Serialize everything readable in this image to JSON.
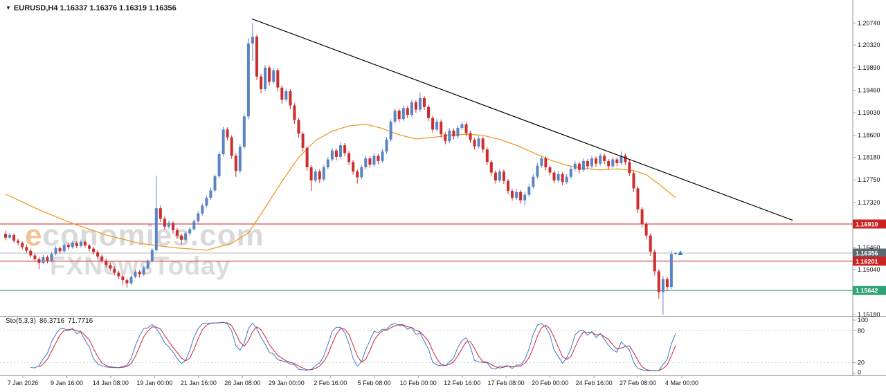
{
  "header": {
    "dropdown_icon": "▼",
    "text": "EURUSD,H4 1.16337 1.16376 1.16319 1.16356"
  },
  "watermark": {
    "line1": "economies.com",
    "line2": "FXNewsToday"
  },
  "colors": {
    "background": "#ffffff",
    "bull": "#5b84c4",
    "bear": "#cc2e2e",
    "ma": "#ef9b28",
    "trendline": "#000000",
    "resistance": "#cc2222",
    "support": "#2fa374",
    "current_price_line": "#b3b9bd",
    "axis_text": "#111111",
    "separator": "#9a9a9a",
    "sto_main": "#3c78c8",
    "sto_signal": "#cc2233",
    "sto_levels": "#cfcfcf",
    "tag_text": "#ffffff"
  },
  "price_axis": {
    "labels": [
      "1.20740",
      "1.20320",
      "1.19890",
      "1.19460",
      "1.19030",
      "1.18600",
      "1.18180",
      "1.17750",
      "1.17320",
      "1.16460",
      "1.16040",
      "1.15180"
    ],
    "tags": [
      {
        "text": "1.16910",
        "value": 1.1691,
        "bg": "#cc2222"
      },
      {
        "text": "1.16356",
        "value": 1.16356,
        "bg": "#5a686f"
      },
      {
        "text": "1.16201",
        "value": 1.16201,
        "bg": "#cc2222"
      },
      {
        "text": "1.15642",
        "value": 1.15642,
        "bg": "#2fa374"
      }
    ]
  },
  "levels": [
    {
      "value": 1.1691,
      "color": "#cc2222",
      "width": 1
    },
    {
      "value": 1.16356,
      "color": "#b3b9bd",
      "width": 1
    },
    {
      "value": 1.16201,
      "color": "#cc2222",
      "width": 1
    },
    {
      "value": 1.15642,
      "color": "#2fa374",
      "width": 1.2
    }
  ],
  "trendline": {
    "from_bar": 58.8,
    "from_price": 1.2082,
    "to_bar": 188,
    "to_price": 1.1698
  },
  "sto_panel": {
    "label": "Sto(5,3,3)",
    "value_main": "86.3716",
    "value_signal": "71.7716",
    "upper_level": 80,
    "lower_level": 20,
    "range": [
      0,
      100
    ],
    "axis_labels": [
      {
        "text": "100",
        "value": 100
      },
      {
        "text": "80",
        "value": 80
      },
      {
        "text": "20",
        "value": 20
      },
      {
        "text": "0",
        "value": 0
      }
    ]
  },
  "chart_data": {
    "type": "candlestick",
    "title": "EURUSD H4",
    "symbol": "EURUSD",
    "timeframe": "H4",
    "y_range": [
      1.1517,
      1.211
    ],
    "grid": false,
    "legend_position": "none",
    "x_axis_dates": [
      "7 Jan 2026",
      "9 Jan 16:00",
      "14 Jan 08:00",
      "19 Jan 00:00",
      "21 Jan 16:00",
      "26 Jan 08:00",
      "29 Jan 00:00",
      "2 Feb 16:00",
      "5 Feb 08:00",
      "10 Feb 00:00",
      "12 Feb 16:00",
      "17 Feb 08:00",
      "20 Feb 00:00",
      "24 Feb 16:00",
      "27 Feb 08:00",
      "4 Mar 00:00"
    ],
    "key_levels": [
      1.1691,
      1.16201,
      1.15642
    ],
    "current_price": 1.16356,
    "indicator": {
      "name": "Stochastic",
      "params": "5,3,3",
      "last_values": [
        86.3716,
        71.7716
      ]
    },
    "ohlc": [
      [
        1.1672,
        1.1678,
        1.166,
        1.1665
      ],
      [
        1.1665,
        1.1674,
        1.1662,
        1.167
      ],
      [
        1.167,
        1.1673,
        1.1655,
        1.1659
      ],
      [
        1.1659,
        1.1663,
        1.165,
        1.1655
      ],
      [
        1.1655,
        1.1658,
        1.1642,
        1.1647
      ],
      [
        1.1647,
        1.1652,
        1.1636,
        1.164
      ],
      [
        1.164,
        1.1644,
        1.1627,
        1.1631
      ],
      [
        1.1631,
        1.1636,
        1.1619,
        1.1624
      ],
      [
        1.1624,
        1.1628,
        1.1605,
        1.1617
      ],
      [
        1.1617,
        1.1632,
        1.1614,
        1.1628
      ],
      [
        1.1628,
        1.1631,
        1.1616,
        1.1621
      ],
      [
        1.1621,
        1.1638,
        1.1618,
        1.1634
      ],
      [
        1.1634,
        1.1649,
        1.1631,
        1.1645
      ],
      [
        1.1645,
        1.1648,
        1.1634,
        1.1639
      ],
      [
        1.1639,
        1.1655,
        1.1636,
        1.1651
      ],
      [
        1.1651,
        1.1655,
        1.1642,
        1.1647
      ],
      [
        1.1647,
        1.1659,
        1.1644,
        1.1655
      ],
      [
        1.1655,
        1.1658,
        1.1645,
        1.1649
      ],
      [
        1.1649,
        1.1661,
        1.1646,
        1.1657
      ],
      [
        1.1657,
        1.166,
        1.1646,
        1.165
      ],
      [
        1.165,
        1.1653,
        1.1639,
        1.1644
      ],
      [
        1.1644,
        1.1648,
        1.1632,
        1.1637
      ],
      [
        1.1637,
        1.1641,
        1.1624,
        1.1629
      ],
      [
        1.1629,
        1.1633,
        1.1616,
        1.1621
      ],
      [
        1.1621,
        1.1625,
        1.1608,
        1.1613
      ],
      [
        1.1613,
        1.1617,
        1.1601,
        1.1606
      ],
      [
        1.1606,
        1.161,
        1.1593,
        1.1598
      ],
      [
        1.1598,
        1.1602,
        1.1586,
        1.1591
      ],
      [
        1.1591,
        1.1595,
        1.1575,
        1.1584
      ],
      [
        1.1584,
        1.1588,
        1.157,
        1.1578
      ],
      [
        1.1578,
        1.1594,
        1.1575,
        1.159
      ],
      [
        1.159,
        1.1604,
        1.1587,
        1.16
      ],
      [
        1.16,
        1.1603,
        1.1589,
        1.1595
      ],
      [
        1.1595,
        1.1611,
        1.1592,
        1.1607
      ],
      [
        1.1607,
        1.1624,
        1.1604,
        1.162
      ],
      [
        1.162,
        1.1645,
        1.1617,
        1.1641
      ],
      [
        1.1641,
        1.1783,
        1.1638,
        1.1721
      ],
      [
        1.1721,
        1.1726,
        1.1695,
        1.1701
      ],
      [
        1.1701,
        1.1705,
        1.168,
        1.1686
      ],
      [
        1.1686,
        1.1697,
        1.1682,
        1.1693
      ],
      [
        1.1693,
        1.1696,
        1.1673,
        1.1679
      ],
      [
        1.1679,
        1.1683,
        1.1663,
        1.1669
      ],
      [
        1.1669,
        1.1673,
        1.1652,
        1.1661
      ],
      [
        1.1661,
        1.1677,
        1.1658,
        1.1673
      ],
      [
        1.1673,
        1.1685,
        1.1669,
        1.1681
      ],
      [
        1.1681,
        1.17,
        1.1678,
        1.1696
      ],
      [
        1.1696,
        1.1715,
        1.1693,
        1.1711
      ],
      [
        1.1711,
        1.173,
        1.1707,
        1.1726
      ],
      [
        1.1726,
        1.1745,
        1.1722,
        1.1741
      ],
      [
        1.1741,
        1.176,
        1.1737,
        1.1755
      ],
      [
        1.1755,
        1.1786,
        1.1751,
        1.1782
      ],
      [
        1.1782,
        1.1829,
        1.1778,
        1.1824
      ],
      [
        1.1824,
        1.1876,
        1.182,
        1.1871
      ],
      [
        1.1871,
        1.1875,
        1.185,
        1.1856
      ],
      [
        1.1856,
        1.186,
        1.1815,
        1.1821
      ],
      [
        1.1821,
        1.1826,
        1.1781,
        1.1792
      ],
      [
        1.1792,
        1.1843,
        1.1788,
        1.1838
      ],
      [
        1.1838,
        1.1901,
        1.1834,
        1.1896
      ],
      [
        1.1896,
        1.2045,
        1.189,
        1.2035
      ],
      [
        1.2035,
        1.2074,
        1.2002,
        1.2048
      ],
      [
        1.2048,
        1.2052,
        1.1965,
        1.1972
      ],
      [
        1.1972,
        1.1977,
        1.194,
        1.1948
      ],
      [
        1.1948,
        1.1994,
        1.1944,
        1.1989
      ],
      [
        1.1989,
        1.1993,
        1.1955,
        1.1962
      ],
      [
        1.1962,
        1.1989,
        1.1958,
        1.1984
      ],
      [
        1.1984,
        1.1988,
        1.1944,
        1.1951
      ],
      [
        1.1951,
        1.1955,
        1.192,
        1.1928
      ],
      [
        1.1928,
        1.1949,
        1.1924,
        1.1944
      ],
      [
        1.1944,
        1.1948,
        1.191,
        1.1917
      ],
      [
        1.1917,
        1.1921,
        1.1882,
        1.1889
      ],
      [
        1.1889,
        1.1893,
        1.1856,
        1.1863
      ],
      [
        1.1863,
        1.1867,
        1.1829,
        1.1836
      ],
      [
        1.1836,
        1.184,
        1.1792,
        1.1799
      ],
      [
        1.1799,
        1.1803,
        1.1754,
        1.1774
      ],
      [
        1.1774,
        1.1796,
        1.177,
        1.1791
      ],
      [
        1.1791,
        1.1795,
        1.1769,
        1.1776
      ],
      [
        1.1776,
        1.1804,
        1.1772,
        1.1799
      ],
      [
        1.1799,
        1.1819,
        1.1795,
        1.1814
      ],
      [
        1.1814,
        1.1836,
        1.181,
        1.1831
      ],
      [
        1.1831,
        1.1835,
        1.1812,
        1.1819
      ],
      [
        1.1819,
        1.1846,
        1.1815,
        1.1841
      ],
      [
        1.1841,
        1.1845,
        1.182,
        1.1826
      ],
      [
        1.1826,
        1.183,
        1.1803,
        1.1809
      ],
      [
        1.1809,
        1.1813,
        1.1785,
        1.1791
      ],
      [
        1.1791,
        1.1795,
        1.1768,
        1.178
      ],
      [
        1.178,
        1.1804,
        1.1776,
        1.1799
      ],
      [
        1.1799,
        1.1821,
        1.1795,
        1.1816
      ],
      [
        1.1816,
        1.182,
        1.1798,
        1.1804
      ],
      [
        1.1804,
        1.1826,
        1.18,
        1.1821
      ],
      [
        1.1821,
        1.1825,
        1.1805,
        1.1811
      ],
      [
        1.1811,
        1.1834,
        1.1807,
        1.1829
      ],
      [
        1.1829,
        1.1857,
        1.1825,
        1.1852
      ],
      [
        1.1852,
        1.1891,
        1.1848,
        1.1886
      ],
      [
        1.1886,
        1.1912,
        1.1882,
        1.1907
      ],
      [
        1.1907,
        1.1911,
        1.1885,
        1.1891
      ],
      [
        1.1891,
        1.1917,
        1.1887,
        1.1912
      ],
      [
        1.1912,
        1.1916,
        1.1893,
        1.1899
      ],
      [
        1.1899,
        1.1928,
        1.1895,
        1.1923
      ],
      [
        1.1923,
        1.1927,
        1.1903,
        1.1909
      ],
      [
        1.1909,
        1.1941,
        1.1905,
        1.1931
      ],
      [
        1.1931,
        1.1935,
        1.1908,
        1.1914
      ],
      [
        1.1914,
        1.1918,
        1.1887,
        1.1893
      ],
      [
        1.1893,
        1.1897,
        1.1865,
        1.1871
      ],
      [
        1.1871,
        1.1891,
        1.1867,
        1.1886
      ],
      [
        1.1886,
        1.189,
        1.1856,
        1.1862
      ],
      [
        1.1862,
        1.1866,
        1.1843,
        1.1849
      ],
      [
        1.1849,
        1.1874,
        1.1845,
        1.1869
      ],
      [
        1.1869,
        1.1873,
        1.1852,
        1.1858
      ],
      [
        1.1858,
        1.1879,
        1.1854,
        1.1874
      ],
      [
        1.1874,
        1.1886,
        1.187,
        1.1881
      ],
      [
        1.1881,
        1.1885,
        1.1858,
        1.1864
      ],
      [
        1.1864,
        1.1868,
        1.1845,
        1.1851
      ],
      [
        1.1851,
        1.1855,
        1.1833,
        1.1839
      ],
      [
        1.1839,
        1.1859,
        1.1835,
        1.1854
      ],
      [
        1.1854,
        1.1858,
        1.1827,
        1.1833
      ],
      [
        1.1833,
        1.1837,
        1.1803,
        1.1809
      ],
      [
        1.1809,
        1.1813,
        1.1783,
        1.1789
      ],
      [
        1.1789,
        1.1793,
        1.1768,
        1.1774
      ],
      [
        1.1774,
        1.1796,
        1.177,
        1.1791
      ],
      [
        1.1791,
        1.1795,
        1.1767,
        1.1773
      ],
      [
        1.1773,
        1.1777,
        1.1748,
        1.1754
      ],
      [
        1.1754,
        1.1758,
        1.1735,
        1.1741
      ],
      [
        1.1741,
        1.1757,
        1.1737,
        1.1752
      ],
      [
        1.1752,
        1.1756,
        1.173,
        1.1736
      ],
      [
        1.1736,
        1.1752,
        1.1727,
        1.1747
      ],
      [
        1.1747,
        1.1767,
        1.1743,
        1.1762
      ],
      [
        1.1762,
        1.1786,
        1.1758,
        1.1781
      ],
      [
        1.1781,
        1.1807,
        1.1777,
        1.1802
      ],
      [
        1.1802,
        1.1821,
        1.1798,
        1.1816
      ],
      [
        1.1816,
        1.182,
        1.1793,
        1.1799
      ],
      [
        1.1799,
        1.1803,
        1.1783,
        1.1789
      ],
      [
        1.1789,
        1.1793,
        1.1768,
        1.1774
      ],
      [
        1.1774,
        1.1791,
        1.177,
        1.1786
      ],
      [
        1.1786,
        1.179,
        1.1765,
        1.1771
      ],
      [
        1.1771,
        1.1786,
        1.1767,
        1.1781
      ],
      [
        1.1781,
        1.1801,
        1.1777,
        1.1796
      ],
      [
        1.1796,
        1.1811,
        1.1792,
        1.1806
      ],
      [
        1.1806,
        1.181,
        1.1788,
        1.1794
      ],
      [
        1.1794,
        1.1816,
        1.179,
        1.1811
      ],
      [
        1.1811,
        1.1815,
        1.1795,
        1.1801
      ],
      [
        1.1801,
        1.1821,
        1.1797,
        1.1816
      ],
      [
        1.1816,
        1.182,
        1.18,
        1.1806
      ],
      [
        1.1806,
        1.1826,
        1.1802,
        1.1821
      ],
      [
        1.1821,
        1.1825,
        1.1805,
        1.1811
      ],
      [
        1.1811,
        1.1815,
        1.1795,
        1.1801
      ],
      [
        1.1801,
        1.1819,
        1.1797,
        1.1814
      ],
      [
        1.1814,
        1.1818,
        1.1801,
        1.1807
      ],
      [
        1.1807,
        1.1829,
        1.1803,
        1.1821
      ],
      [
        1.1821,
        1.1825,
        1.1803,
        1.1809
      ],
      [
        1.1809,
        1.1813,
        1.1782,
        1.1788
      ],
      [
        1.1788,
        1.1792,
        1.1752,
        1.1759
      ],
      [
        1.1759,
        1.1763,
        1.1712,
        1.1719
      ],
      [
        1.1719,
        1.1723,
        1.1684,
        1.1691
      ],
      [
        1.1691,
        1.1695,
        1.1662,
        1.1669
      ],
      [
        1.1669,
        1.1673,
        1.163,
        1.1638
      ],
      [
        1.1638,
        1.1642,
        1.1593,
        1.1601
      ],
      [
        1.1601,
        1.1605,
        1.1549,
        1.1561
      ],
      [
        1.1561,
        1.1592,
        1.1518,
        1.1586
      ],
      [
        1.1586,
        1.159,
        1.1563,
        1.1571
      ],
      [
        1.1571,
        1.1639,
        1.1567,
        1.16337
      ],
      [
        1.16337,
        1.16376,
        1.16319,
        1.16356
      ]
    ],
    "ma_points": [
      [
        0,
        1.1748
      ],
      [
        8,
        1.1718
      ],
      [
        16,
        1.1692
      ],
      [
        24,
        1.167
      ],
      [
        32,
        1.1654
      ],
      [
        40,
        1.1646
      ],
      [
        48,
        1.1641
      ],
      [
        54,
        1.1654
      ],
      [
        58,
        1.1674
      ],
      [
        62,
        1.1722
      ],
      [
        66,
        1.1772
      ],
      [
        70,
        1.1818
      ],
      [
        74,
        1.185
      ],
      [
        78,
        1.1868
      ],
      [
        82,
        1.1878
      ],
      [
        86,
        1.1881
      ],
      [
        90,
        1.1873
      ],
      [
        94,
        1.1861
      ],
      [
        98,
        1.1853
      ],
      [
        102,
        1.1856
      ],
      [
        106,
        1.186
      ],
      [
        110,
        1.1862
      ],
      [
        114,
        1.186
      ],
      [
        118,
        1.1852
      ],
      [
        122,
        1.1841
      ],
      [
        126,
        1.1827
      ],
      [
        130,
        1.1813
      ],
      [
        134,
        1.1803
      ],
      [
        138,
        1.1797
      ],
      [
        142,
        1.1794
      ],
      [
        146,
        1.1796
      ],
      [
        150,
        1.1793
      ],
      [
        153,
        1.1785
      ],
      [
        156,
        1.1767
      ],
      [
        160,
        1.1741
      ]
    ]
  }
}
